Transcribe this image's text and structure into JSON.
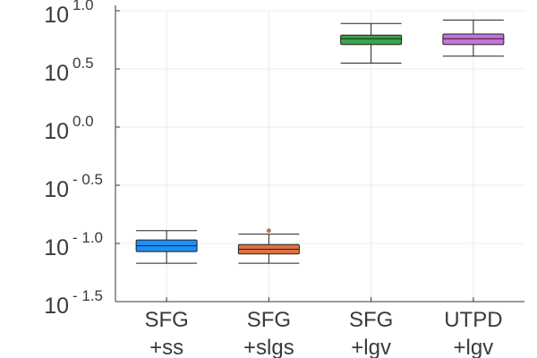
{
  "chart_data": {
    "type": "box",
    "title": "",
    "xlabel": "",
    "ylabel": "",
    "yscale": "log10",
    "ylim": [
      -1.5,
      1.0
    ],
    "y_ticks": [
      {
        "base": "10",
        "exp": "1.0",
        "value": 1.0
      },
      {
        "base": "10",
        "exp": "0.5",
        "value": 0.5
      },
      {
        "base": "10",
        "exp": "0.0",
        "value": 0.0
      },
      {
        "base": "10",
        "exp": "- 0.5",
        "value": -0.5
      },
      {
        "base": "10",
        "exp": "- 1.0",
        "value": -1.0
      },
      {
        "base": "10",
        "exp": "- 1.5",
        "value": -1.5
      }
    ],
    "categories": [
      {
        "line1": "SFG",
        "line2": "+ss"
      },
      {
        "line1": "SFG",
        "line2": "+slgs"
      },
      {
        "line1": "SFG",
        "line2": "+lgv"
      },
      {
        "line1": "UTPD",
        "line2": "+lgv"
      }
    ],
    "grid": true,
    "legend": "none",
    "boxes": [
      {
        "name": "SFG +ss",
        "color": "#1e8ff5",
        "whisker_low": -1.17,
        "q1": -1.07,
        "median": -1.02,
        "q3": -0.97,
        "whisker_high": -0.89,
        "outliers": []
      },
      {
        "name": "SFG +slgs",
        "color": "#e0703f",
        "whisker_low": -1.17,
        "q1": -1.09,
        "median": -1.05,
        "q3": -1.01,
        "whisker_high": -0.92,
        "outliers": [
          -0.89
        ]
      },
      {
        "name": "SFG +lgv",
        "color": "#3aa54a",
        "whisker_low": 0.55,
        "q1": 0.71,
        "median": 0.76,
        "q3": 0.79,
        "whisker_high": 0.89,
        "outliers": []
      },
      {
        "name": "UTPD +lgv",
        "color": "#c773dc",
        "whisker_low": 0.61,
        "q1": 0.71,
        "median": 0.76,
        "q3": 0.8,
        "whisker_high": 0.92,
        "outliers": []
      }
    ]
  }
}
